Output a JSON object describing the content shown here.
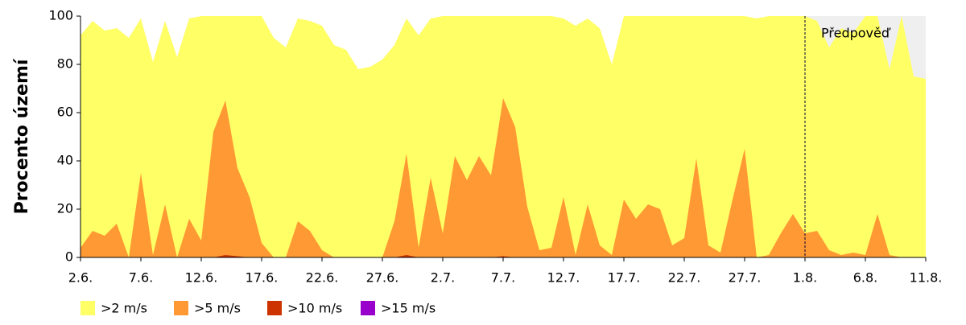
{
  "chart_data": {
    "type": "area",
    "y_label": "Procento území",
    "categories": [
      "2.6.",
      null,
      null,
      null,
      null,
      "7.6.",
      null,
      null,
      null,
      null,
      "12.6.",
      null,
      null,
      null,
      null,
      "17.6.",
      null,
      null,
      null,
      null,
      "22.6.",
      null,
      null,
      null,
      null,
      "27.6.",
      null,
      null,
      null,
      null,
      "2.7.",
      null,
      null,
      null,
      null,
      "7.7.",
      null,
      null,
      null,
      null,
      "12.7.",
      null,
      null,
      null,
      null,
      "17.7.",
      null,
      null,
      null,
      null,
      "22.7.",
      null,
      null,
      null,
      null,
      "27.7.",
      null,
      null,
      null,
      null,
      "1.8.",
      null,
      null,
      null,
      null,
      "6.8.",
      null,
      null,
      null,
      null,
      "11.8."
    ],
    "series": [
      {
        "name": ">2 m/s",
        "color": "#ffff66",
        "values": [
          92,
          98,
          94,
          95,
          91,
          99,
          81,
          98,
          83,
          99,
          100,
          100,
          100,
          100,
          100,
          100,
          91,
          87,
          99,
          98,
          96,
          88,
          86,
          78,
          79,
          82,
          88,
          99,
          92,
          99,
          100,
          100,
          100,
          100,
          100,
          100,
          100,
          100,
          100,
          100,
          99,
          96,
          99,
          95,
          80,
          100,
          100,
          100,
          100,
          100,
          100,
          100,
          100,
          100,
          100,
          100,
          99,
          100,
          100,
          100,
          100,
          98,
          87,
          95,
          93,
          100,
          100,
          78,
          100,
          75,
          74
        ]
      },
      {
        "name": ">5 m/s",
        "color": "#ff9933",
        "values": [
          4,
          11,
          9,
          14,
          0,
          35,
          1,
          22,
          0,
          16,
          7,
          52,
          65,
          37,
          25,
          6,
          0,
          0,
          15,
          11,
          3,
          0,
          0,
          0,
          0,
          0,
          15,
          43,
          4,
          33,
          10,
          42,
          32,
          42,
          34,
          66,
          54,
          21,
          3,
          4,
          25,
          1,
          22,
          5,
          1,
          24,
          16,
          22,
          20,
          5,
          8,
          41,
          5,
          2,
          24,
          45,
          0,
          1,
          10,
          18,
          10,
          11,
          3,
          1,
          2,
          1,
          18,
          1,
          0,
          0,
          0
        ]
      },
      {
        "name": ">10 m/s",
        "color": "#cc3300",
        "values": [
          0,
          0,
          0,
          0,
          0,
          0,
          0,
          0,
          0,
          0,
          0,
          0,
          1,
          0.5,
          0,
          0,
          0,
          0,
          0,
          0,
          0,
          0,
          0,
          0,
          0,
          0,
          0,
          1,
          0,
          0,
          0,
          0,
          0,
          0,
          0,
          0.5,
          0,
          0,
          0,
          0,
          0,
          0,
          0,
          0,
          0,
          0,
          0,
          0,
          0,
          0,
          0,
          0,
          0,
          0,
          0,
          0,
          0,
          0,
          0,
          0,
          0,
          0,
          0,
          0,
          0,
          0,
          0,
          0,
          0,
          0,
          0
        ]
      },
      {
        "name": ">15 m/s",
        "color": "#9900cc",
        "values": [
          0,
          0,
          0,
          0,
          0,
          0,
          0,
          0,
          0,
          0,
          0,
          0,
          0,
          0,
          0,
          0,
          0,
          0,
          0,
          0,
          0,
          0,
          0,
          0,
          0,
          0,
          0,
          0,
          0,
          0,
          0,
          0,
          0,
          0,
          0,
          0,
          0,
          0,
          0,
          0,
          0,
          0,
          0,
          0,
          0,
          0,
          0,
          0,
          0,
          0,
          0,
          0,
          0,
          0,
          0,
          0,
          0,
          0,
          0,
          0,
          0,
          0,
          0,
          0,
          0,
          0,
          0,
          0,
          0,
          0,
          0
        ]
      }
    ],
    "ylim": [
      0,
      100
    ],
    "yticks": [
      0,
      20,
      40,
      60,
      80,
      100
    ],
    "forecast": {
      "label": "Předpověď",
      "from": "1.8."
    }
  }
}
